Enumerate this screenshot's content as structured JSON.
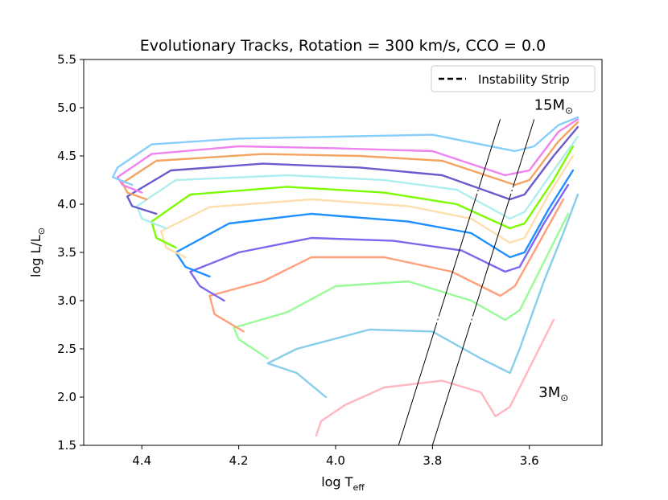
{
  "chart_data": {
    "type": "line",
    "title": "Evolutionary Tracks, Rotation = 300 km/s, CCO = 0.0",
    "xlabel": "log T",
    "xlabel_sub": "eff",
    "ylabel": "log L/L",
    "ylabel_sub": "⊙",
    "xlim": [
      4.52,
      3.45
    ],
    "ylim": [
      1.5,
      5.5
    ],
    "x_ticks": [
      4.4,
      4.2,
      4.0,
      3.8,
      3.6
    ],
    "x_tick_labels": [
      "4.4",
      "4.2",
      "4.0",
      "3.8",
      "3.6"
    ],
    "y_ticks": [
      1.5,
      2.0,
      2.5,
      3.0,
      3.5,
      4.0,
      4.5,
      5.0,
      5.5
    ],
    "y_tick_labels": [
      "1.5",
      "2.0",
      "2.5",
      "3.0",
      "3.5",
      "4.0",
      "4.5",
      "5.0",
      "5.5"
    ],
    "grid": false,
    "legend": {
      "position": "upper right",
      "entries": [
        {
          "label": "Instability Strip",
          "style": "dashed",
          "color": "#000000"
        }
      ]
    },
    "annotations": [
      {
        "text": "15M",
        "sub": "⊙",
        "x": 3.55,
        "y": 4.98
      },
      {
        "text": "3M",
        "sub": "⊙",
        "x": 3.55,
        "y": 2.0
      }
    ],
    "instability_strip": [
      {
        "points": [
          [
            3.87,
            1.5
          ],
          [
            3.66,
            4.88
          ]
        ]
      },
      {
        "points": [
          [
            3.8,
            1.5
          ],
          [
            3.59,
            4.88
          ]
        ]
      }
    ],
    "series": [
      {
        "color": "#ffb6c1",
        "points": [
          [
            4.04,
            1.6
          ],
          [
            4.03,
            1.75
          ],
          [
            3.98,
            1.92
          ],
          [
            3.9,
            2.1
          ],
          [
            3.78,
            2.17
          ],
          [
            3.7,
            2.05
          ],
          [
            3.67,
            1.8
          ],
          [
            3.64,
            1.9
          ],
          [
            3.6,
            2.3
          ],
          [
            3.55,
            2.8
          ]
        ]
      },
      {
        "color": "#87ceeb",
        "points": [
          [
            4.02,
            2.0
          ],
          [
            4.08,
            2.25
          ],
          [
            4.14,
            2.35
          ],
          [
            4.08,
            2.5
          ],
          [
            3.93,
            2.7
          ],
          [
            3.8,
            2.68
          ],
          [
            3.7,
            2.4
          ],
          [
            3.64,
            2.25
          ],
          [
            3.62,
            2.5
          ],
          [
            3.57,
            3.2
          ],
          [
            3.53,
            3.7
          ],
          [
            3.5,
            4.1
          ]
        ]
      },
      {
        "color": "#98fb98",
        "points": [
          [
            4.14,
            2.4
          ],
          [
            4.2,
            2.6
          ],
          [
            4.21,
            2.72
          ],
          [
            4.1,
            2.88
          ],
          [
            4.0,
            3.15
          ],
          [
            3.85,
            3.2
          ],
          [
            3.72,
            3.0
          ],
          [
            3.65,
            2.8
          ],
          [
            3.62,
            2.9
          ],
          [
            3.57,
            3.4
          ],
          [
            3.52,
            3.9
          ]
        ]
      },
      {
        "color": "#ffa07a",
        "points": [
          [
            4.19,
            2.68
          ],
          [
            4.25,
            2.86
          ],
          [
            4.26,
            3.05
          ],
          [
            4.15,
            3.2
          ],
          [
            4.05,
            3.45
          ],
          [
            3.9,
            3.45
          ],
          [
            3.76,
            3.3
          ],
          [
            3.66,
            3.05
          ],
          [
            3.63,
            3.15
          ],
          [
            3.58,
            3.6
          ],
          [
            3.53,
            4.05
          ]
        ]
      },
      {
        "color": "#7b68ee",
        "points": [
          [
            4.23,
            3.0
          ],
          [
            4.28,
            3.15
          ],
          [
            4.3,
            3.3
          ],
          [
            4.2,
            3.5
          ],
          [
            4.05,
            3.65
          ],
          [
            3.88,
            3.62
          ],
          [
            3.74,
            3.52
          ],
          [
            3.65,
            3.3
          ],
          [
            3.62,
            3.35
          ],
          [
            3.57,
            3.8
          ],
          [
            3.52,
            4.2
          ]
        ]
      },
      {
        "color": "#1e90ff",
        "points": [
          [
            4.26,
            3.25
          ],
          [
            4.31,
            3.35
          ],
          [
            4.33,
            3.5
          ],
          [
            4.22,
            3.8
          ],
          [
            4.05,
            3.9
          ],
          [
            3.85,
            3.82
          ],
          [
            3.72,
            3.7
          ],
          [
            3.64,
            3.45
          ],
          [
            3.61,
            3.5
          ],
          [
            3.56,
            3.95
          ],
          [
            3.51,
            4.35
          ]
        ]
      },
      {
        "color": "#ffdead",
        "points": [
          [
            4.31,
            3.45
          ],
          [
            4.35,
            3.55
          ],
          [
            4.36,
            3.72
          ],
          [
            4.26,
            3.97
          ],
          [
            4.05,
            4.05
          ],
          [
            3.85,
            3.98
          ],
          [
            3.72,
            3.85
          ],
          [
            3.64,
            3.6
          ],
          [
            3.61,
            3.65
          ],
          [
            3.56,
            4.1
          ],
          [
            3.51,
            4.5
          ]
        ]
      },
      {
        "color": "#7cfc00",
        "points": [
          [
            4.33,
            3.55
          ],
          [
            4.37,
            3.65
          ],
          [
            4.38,
            3.82
          ],
          [
            4.3,
            4.1
          ],
          [
            4.1,
            4.18
          ],
          [
            3.9,
            4.12
          ],
          [
            3.75,
            4.0
          ],
          [
            3.64,
            3.75
          ],
          [
            3.61,
            3.8
          ],
          [
            3.55,
            4.25
          ],
          [
            3.51,
            4.6
          ]
        ]
      },
      {
        "color": "#afeeee",
        "points": [
          [
            4.35,
            3.75
          ],
          [
            4.4,
            3.85
          ],
          [
            4.41,
            3.98
          ],
          [
            4.33,
            4.25
          ],
          [
            4.1,
            4.3
          ],
          [
            3.9,
            4.25
          ],
          [
            3.75,
            4.15
          ],
          [
            3.64,
            3.85
          ],
          [
            3.61,
            3.92
          ],
          [
            3.55,
            4.35
          ],
          [
            3.5,
            4.7
          ]
        ]
      },
      {
        "color": "#6a5acd",
        "points": [
          [
            4.37,
            3.9
          ],
          [
            4.42,
            3.98
          ],
          [
            4.43,
            4.08
          ],
          [
            4.34,
            4.35
          ],
          [
            4.15,
            4.42
          ],
          [
            3.95,
            4.38
          ],
          [
            3.78,
            4.3
          ],
          [
            3.64,
            4.05
          ],
          [
            3.61,
            4.1
          ],
          [
            3.55,
            4.5
          ],
          [
            3.5,
            4.8
          ]
        ]
      },
      {
        "color": "#f4a460",
        "points": [
          [
            4.39,
            4.05
          ],
          [
            4.43,
            4.12
          ],
          [
            4.44,
            4.22
          ],
          [
            4.37,
            4.45
          ],
          [
            4.15,
            4.52
          ],
          [
            3.95,
            4.5
          ],
          [
            3.78,
            4.45
          ],
          [
            3.63,
            4.2
          ],
          [
            3.6,
            4.25
          ],
          [
            3.54,
            4.65
          ],
          [
            3.5,
            4.85
          ]
        ]
      },
      {
        "color": "#ee82ee",
        "points": [
          [
            4.4,
            4.12
          ],
          [
            4.44,
            4.2
          ],
          [
            4.45,
            4.28
          ],
          [
            4.38,
            4.52
          ],
          [
            4.2,
            4.6
          ],
          [
            4.0,
            4.58
          ],
          [
            3.8,
            4.55
          ],
          [
            3.65,
            4.3
          ],
          [
            3.6,
            4.35
          ],
          [
            3.54,
            4.75
          ],
          [
            3.5,
            4.88
          ]
        ]
      },
      {
        "color": "#87cefa",
        "points": [
          [
            4.42,
            4.2
          ],
          [
            4.46,
            4.28
          ],
          [
            4.45,
            4.38
          ],
          [
            4.38,
            4.62
          ],
          [
            4.2,
            4.68
          ],
          [
            4.0,
            4.7
          ],
          [
            3.8,
            4.72
          ],
          [
            3.63,
            4.55
          ],
          [
            3.59,
            4.6
          ],
          [
            3.54,
            4.82
          ],
          [
            3.5,
            4.9
          ]
        ]
      }
    ]
  }
}
